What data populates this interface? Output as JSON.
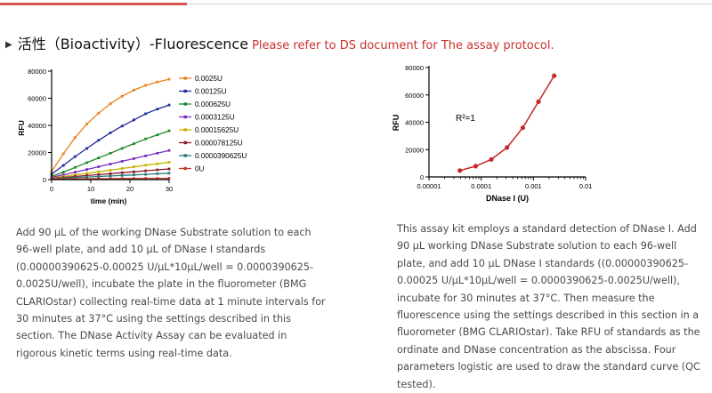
{
  "heading": {
    "title": "活性（Bioactivity）-Fluorescence",
    "note": "Please refer to DS document for The assay protocol."
  },
  "paragraphs": {
    "left": "Add 90 μL of the working DNase Substrate solution to each 96-well plate, and add 10 μL of DNase I standards (0.00000390625-0.00025 U/μL*10μL/well = 0.0000390625-0.0025U/well), incubate the plate in the fluorometer (BMG CLARIOstar) collecting real-time data at 1 minute intervals for 30 minutes at 37°C using the settings described in this section. The DNase Activity Assay can be evaluated in rigorous kinetic terms using real-time data.",
    "right": "This assay kit employs a standard detection of DNase I. Add 90 μL working DNase Substrate solution to each 96-well plate, and add 10 μL DNase I standards ((0.00000390625-0.00025 U/μL*10μL/well = 0.0000390625-0.0025U/well), incubate for 30 minutes at 37°C. Then measure the fluorescence using the settings described in this section in a fluorometer (BMG CLARIOstar). Take RFU of standards as the ordinate and DNase concentration as the abscissa. Four parameters logistic are used to draw the standard curve (QC tested)."
  },
  "chart_data": [
    {
      "type": "line",
      "xlabel": "time (min)",
      "ylabel": "RFU",
      "xlim": [
        0,
        30
      ],
      "ylim": [
        0,
        80000
      ],
      "xticks": [
        "0",
        "10",
        "20",
        "30"
      ],
      "yticks": [
        "0",
        "20000",
        "40000",
        "60000",
        "80000"
      ],
      "x": [
        0,
        3,
        6,
        9,
        12,
        15,
        18,
        21,
        24,
        27,
        30
      ],
      "legend": "right",
      "series": [
        {
          "name": "0.0025U",
          "color": "#e8821e",
          "values": [
            6000,
            19000,
            31000,
            41000,
            49000,
            56000,
            61500,
            66000,
            69500,
            72000,
            74000
          ]
        },
        {
          "name": "0.00125U",
          "color": "#1f2a9c",
          "values": [
            4000,
            10500,
            17000,
            23000,
            29000,
            34500,
            39500,
            44000,
            48500,
            52000,
            55000
          ]
        },
        {
          "name": "0.000625U",
          "color": "#1e8a2a",
          "values": [
            2500,
            5500,
            9000,
            12500,
            16000,
            19500,
            23000,
            26500,
            30000,
            33000,
            36000
          ]
        },
        {
          "name": "0.0003125U",
          "color": "#7b2fbf",
          "values": [
            1800,
            3500,
            5500,
            7500,
            9500,
            11500,
            13500,
            15500,
            17500,
            19500,
            21500
          ]
        },
        {
          "name": "0.00015625U",
          "color": "#c9b400",
          "values": [
            1200,
            2300,
            3400,
            4600,
            5800,
            7000,
            8200,
            9400,
            10600,
            11700,
            12800
          ]
        },
        {
          "name": "0.000078125U",
          "color": "#8b1a2b",
          "values": [
            900,
            1600,
            2300,
            3000,
            3700,
            4400,
            5100,
            5800,
            6500,
            7200,
            7900
          ]
        },
        {
          "name": "0.0000390625U",
          "color": "#2a7a7a",
          "values": [
            700,
            1100,
            1500,
            1900,
            2300,
            2700,
            3100,
            3500,
            3900,
            4300,
            4700
          ]
        },
        {
          "name": "0U",
          "color": "#c0392b",
          "values": [
            500,
            550,
            600,
            650,
            700,
            750,
            800,
            850,
            900,
            950,
            1000
          ]
        }
      ]
    },
    {
      "type": "line",
      "xlabel": "DNase I (U)",
      "ylabel": "RFU",
      "xscale": "log",
      "xlim": [
        1e-05,
        0.01
      ],
      "ylim": [
        0,
        80000
      ],
      "xticks": [
        "0.00001",
        "0.0001",
        "0.001",
        "0.01"
      ],
      "yticks": [
        "0",
        "20000",
        "40000",
        "60000",
        "80000"
      ],
      "annotation": "R²=1",
      "color": "#c62828",
      "series": [
        {
          "x": [
            3.90625e-05,
            7.8125e-05,
            0.00015625,
            0.0003125,
            0.000625,
            0.00125,
            0.0025
          ],
          "values": [
            4700,
            7900,
            12800,
            21500,
            36000,
            55000,
            74000
          ]
        }
      ]
    }
  ]
}
